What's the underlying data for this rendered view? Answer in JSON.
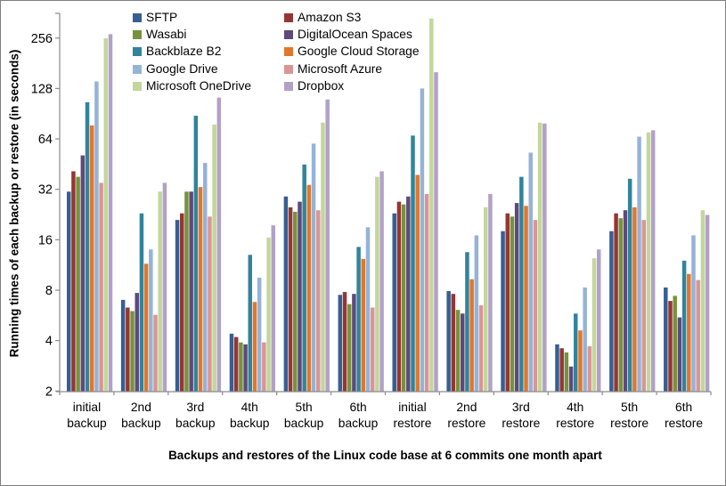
{
  "chart_data": {
    "type": "bar",
    "y_scale": "log2",
    "grid": false,
    "legend_position": "top-center-two-columns",
    "xlabel": "Backups and restores of the Linux code base at 6 commits one month apart",
    "ylabel": "Running times of each backup or restore (in seconds)",
    "y_ticks": [
      2,
      4,
      8,
      16,
      32,
      64,
      128,
      256
    ],
    "ylim": [
      2,
      360
    ],
    "categories": [
      "initial backup",
      "2nd backup",
      "3rd backup",
      "4th backup",
      "5th backup",
      "6th backup",
      "initial restore",
      "2nd restore",
      "3rd restore",
      "4th restore",
      "5th restore",
      "6th restore"
    ],
    "series": [
      {
        "name": "SFTP",
        "color": "#365F91",
        "values": [
          31,
          7.0,
          21,
          4.4,
          29,
          7.5,
          23,
          7.9,
          18,
          3.8,
          18,
          8.3
        ]
      },
      {
        "name": "Amazon S3",
        "color": "#943634",
        "values": [
          41,
          6.3,
          23,
          4.2,
          25,
          7.8,
          27,
          7.6,
          23,
          3.6,
          23,
          6.9
        ]
      },
      {
        "name": "Wasabi",
        "color": "#76923C",
        "values": [
          38,
          6.0,
          31,
          3.9,
          23.5,
          6.6,
          26,
          6.1,
          22,
          3.4,
          21.5,
          7.4
        ]
      },
      {
        "name": "DigitalOcean Spaces",
        "color": "#5F497A",
        "values": [
          51,
          7.7,
          31,
          3.8,
          27,
          7.6,
          29,
          5.8,
          26.5,
          2.8,
          24,
          5.5
        ]
      },
      {
        "name": "Backblaze B2",
        "color": "#31849B",
        "values": [
          106,
          23,
          88,
          13,
          45,
          14.5,
          67,
          13.5,
          38,
          5.8,
          37,
          12
        ]
      },
      {
        "name": "Google Cloud Storage",
        "color": "#E0772C",
        "values": [
          77,
          11.5,
          33,
          6.8,
          34,
          12.3,
          39,
          9.3,
          25.5,
          4.6,
          25,
          10
        ]
      },
      {
        "name": "Google Drive",
        "color": "#95B3D7",
        "values": [
          141,
          14,
          46,
          9.5,
          60,
          19,
          128,
          17,
          53,
          8.3,
          66,
          17
        ]
      },
      {
        "name": "Microsoft Azure",
        "color": "#D99694",
        "values": [
          35,
          5.7,
          22,
          3.9,
          24,
          6.3,
          30,
          6.5,
          21,
          3.7,
          21,
          9.2
        ]
      },
      {
        "name": "Microsoft OneDrive",
        "color": "#C3D69B",
        "values": [
          255,
          31,
          78,
          16.5,
          80,
          38,
          335,
          25,
          80,
          12.4,
          70,
          24
        ]
      },
      {
        "name": "Dropbox",
        "color": "#B2A1C7",
        "values": [
          270,
          35,
          113,
          19.5,
          110,
          41,
          160,
          30,
          79,
          14,
          72,
          22.5
        ]
      }
    ]
  },
  "colors": {
    "axis": "#8C8C8C",
    "text": "#000000",
    "border": "#7F7F7F",
    "background": "#FFFFFF"
  }
}
